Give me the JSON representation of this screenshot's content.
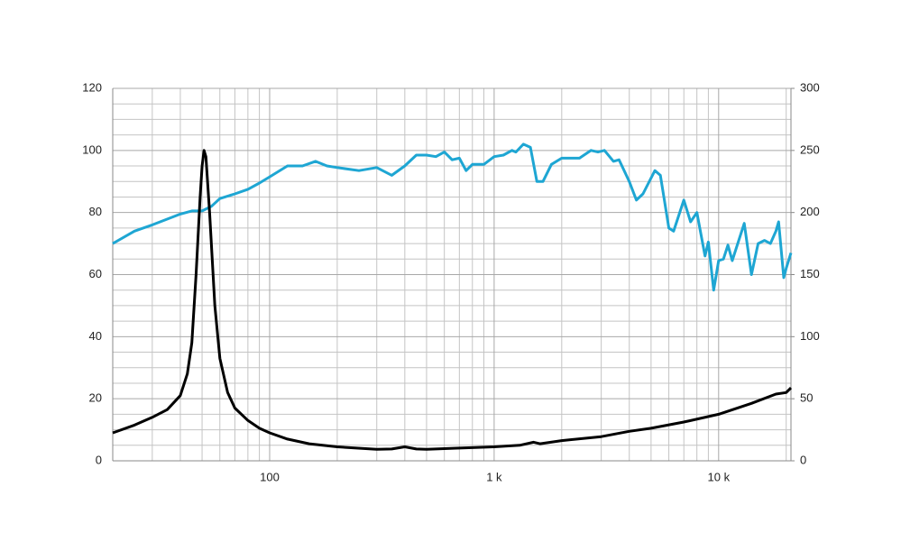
{
  "chart_data": {
    "type": "line",
    "xscale": "log",
    "xlim": [
      20,
      21000
    ],
    "xticks": [
      100,
      {
        "value": 1000,
        "label": "1 k"
      },
      {
        "value": 10000,
        "label": "10 k"
      }
    ],
    "xgrid": [
      20,
      30,
      40,
      50,
      60,
      70,
      80,
      90,
      200,
      300,
      400,
      500,
      600,
      700,
      800,
      900,
      2000,
      3000,
      4000,
      5000,
      6000,
      7000,
      8000,
      9000,
      20000
    ],
    "ylim": [
      0,
      120
    ],
    "yticks": [
      0,
      20,
      40,
      60,
      80,
      100,
      120
    ],
    "ygrid": [
      5,
      10,
      15,
      25,
      30,
      35,
      45,
      50,
      55,
      65,
      70,
      75,
      85,
      90,
      95,
      105,
      110,
      115
    ],
    "y2lim": [
      0,
      300
    ],
    "y2ticks": [
      0,
      50,
      100,
      150,
      200,
      250,
      300
    ],
    "grid": true,
    "series": [
      {
        "color": "#1ea6d3",
        "x": [
          20,
          25,
          30,
          40,
          45,
          50,
          55,
          60,
          70,
          80,
          90,
          100,
          120,
          140,
          160,
          180,
          200,
          250,
          300,
          350,
          400,
          450,
          500,
          550,
          600,
          650,
          700,
          750,
          800,
          900,
          1000,
          1100,
          1200,
          1250,
          1350,
          1450,
          1550,
          1650,
          1800,
          2000,
          2400,
          2700,
          2900,
          3100,
          3400,
          3600,
          4000,
          4300,
          4600,
          5200,
          5500,
          6000,
          6300,
          7000,
          7500,
          8000,
          8700,
          9000,
          9500,
          10000,
          10500,
          11000,
          11500,
          13000,
          14000,
          15000,
          16000,
          17000,
          18000,
          18500,
          19500,
          20000,
          21000
        ],
        "values": [
          70,
          74,
          76,
          79.5,
          80.5,
          80.5,
          82,
          84.5,
          86,
          87.5,
          89.5,
          91.5,
          95,
          95,
          96.5,
          95,
          94.5,
          93.5,
          94.5,
          92,
          95,
          98.5,
          98.5,
          98,
          99.5,
          97,
          97.5,
          93.5,
          95.5,
          95.5,
          98,
          98.5,
          100,
          99.5,
          102,
          101,
          90,
          90,
          95.5,
          97.5,
          97.5,
          100,
          99.5,
          100,
          96.5,
          97,
          90,
          84,
          86,
          93.5,
          92,
          75,
          74,
          84,
          77,
          80,
          66,
          70.5,
          55,
          64.5,
          65,
          69.5,
          64.5,
          76.5,
          60,
          70,
          71,
          70,
          74,
          77,
          59,
          62,
          67
        ]
      },
      {
        "color": "#000000",
        "x": [
          20,
          25,
          30,
          35,
          40,
          43,
          45,
          47,
          49,
          50,
          51,
          52,
          54,
          57,
          60,
          65,
          70,
          80,
          90,
          100,
          120,
          150,
          200,
          300,
          350,
          400,
          450,
          500,
          700,
          1000,
          1300,
          1500,
          1600,
          2000,
          3000,
          4000,
          5000,
          7000,
          10000,
          14000,
          18000,
          20000,
          21000
        ],
        "values": [
          9,
          11.5,
          14,
          16.5,
          21,
          28,
          38,
          60,
          85,
          95,
          100,
          98,
          80,
          50,
          33,
          22,
          17,
          13,
          10.5,
          9,
          7,
          5.5,
          4.5,
          3.7,
          3.8,
          4.5,
          3.8,
          3.7,
          4.1,
          4.5,
          5,
          6,
          5.5,
          6.5,
          7.8,
          9.5,
          10.5,
          12.5,
          15,
          18.5,
          21.5,
          22,
          23.5
        ]
      }
    ]
  }
}
